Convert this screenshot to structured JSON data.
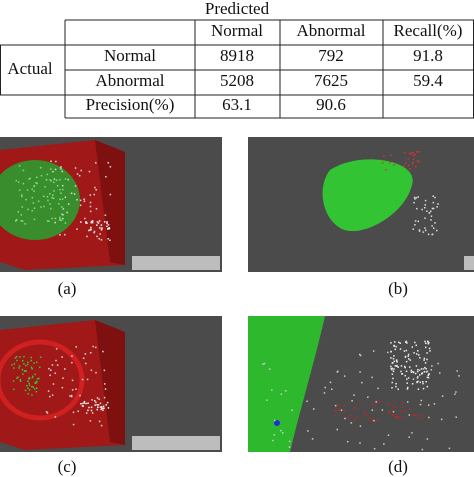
{
  "header": {
    "title": "Predicted"
  },
  "table": {
    "row_header": "Actual",
    "columns": [
      "Normal",
      "Abnormal",
      "Recall(%)"
    ],
    "rows": [
      [
        "Normal",
        "8918",
        "792",
        "91.8"
      ],
      [
        "Abnormal",
        "5208",
        "7625",
        "59.4"
      ],
      [
        "Precision(%)",
        "63.1",
        "90.6"
      ]
    ]
  },
  "captions": [
    "(a)",
    "(b)",
    "(c)",
    "(d)"
  ]
}
